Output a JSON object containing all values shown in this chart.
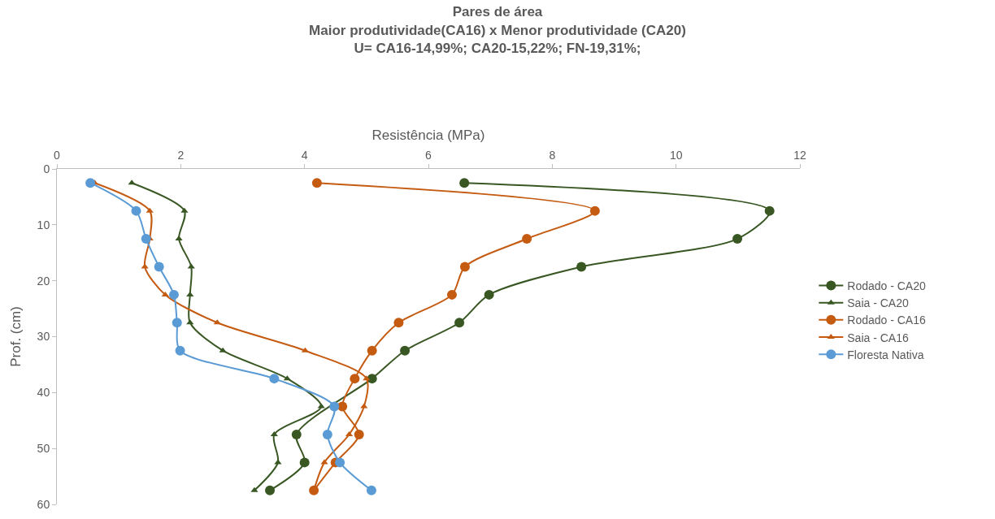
{
  "chart_data": {
    "type": "line",
    "title": "Pares de área\nMaior produtividade(CA16) x Menor produtividade (CA20)\nU= CA16-14,99%; CA20-15,22%; FN-19,31%;",
    "xlabel": "Resistência (MPa)",
    "ylabel": "Prof. (cm)",
    "xlim": [
      0,
      12
    ],
    "xticks": [
      0,
      2,
      4,
      6,
      8,
      10,
      12
    ],
    "ylim": [
      60,
      0
    ],
    "yticks": [
      0,
      10,
      20,
      30,
      40,
      50,
      60
    ],
    "grid": false,
    "legend": "right",
    "line_style": "solid",
    "series": [
      {
        "name": "Rodado - CA20",
        "color": "#385723",
        "marker": "circle",
        "x": [
          6.58,
          11.51,
          10.99,
          8.47,
          6.98,
          6.5,
          5.62,
          5.09,
          3.87,
          4.0,
          3.44
        ],
        "values": [
          2.5,
          7.5,
          12.5,
          17.5,
          22.5,
          27.5,
          32.5,
          37.5,
          47.5,
          52.5,
          57.5
        ]
      },
      {
        "name": "Saia - CA20",
        "color": "#385723",
        "marker": "triangle",
        "x": [
          1.21,
          2.06,
          1.97,
          2.17,
          2.15,
          2.15,
          2.68,
          3.72,
          4.27,
          3.51,
          3.57,
          3.19
        ],
        "values": [
          2.5,
          7.5,
          12.5,
          17.5,
          22.5,
          27.5,
          32.5,
          37.5,
          42.5,
          47.5,
          52.5,
          57.5
        ]
      },
      {
        "name": "Rodado - CA16",
        "color": "#c55a11",
        "marker": "circle",
        "x": [
          4.2,
          8.69,
          7.59,
          6.59,
          6.38,
          5.52,
          5.09,
          4.81,
          4.61,
          4.88,
          4.5,
          4.15
        ],
        "values": [
          2.5,
          7.5,
          12.5,
          17.5,
          22.5,
          27.5,
          32.5,
          37.5,
          42.5,
          47.5,
          52.5,
          57.5
        ]
      },
      {
        "name": "Saia - CA16",
        "color": "#c55a11",
        "marker": "triangle",
        "x": [
          0.61,
          1.5,
          1.5,
          1.42,
          1.75,
          2.59,
          4.01,
          5.0,
          4.96,
          4.72,
          4.32,
          4.15
        ],
        "values": [
          2.5,
          7.5,
          12.5,
          17.5,
          22.5,
          27.5,
          32.5,
          37.5,
          42.5,
          47.5,
          52.5,
          57.5
        ]
      },
      {
        "name": "Floresta Nativa",
        "color": "#5b9bd5",
        "marker": "circle",
        "x": [
          0.54,
          1.28,
          1.44,
          1.65,
          1.89,
          1.94,
          1.99,
          3.51,
          4.48,
          4.37,
          4.57,
          5.08
        ],
        "values": [
          2.5,
          7.5,
          12.5,
          17.5,
          22.5,
          27.5,
          32.5,
          37.5,
          42.5,
          47.5,
          52.5,
          57.5
        ]
      }
    ]
  }
}
